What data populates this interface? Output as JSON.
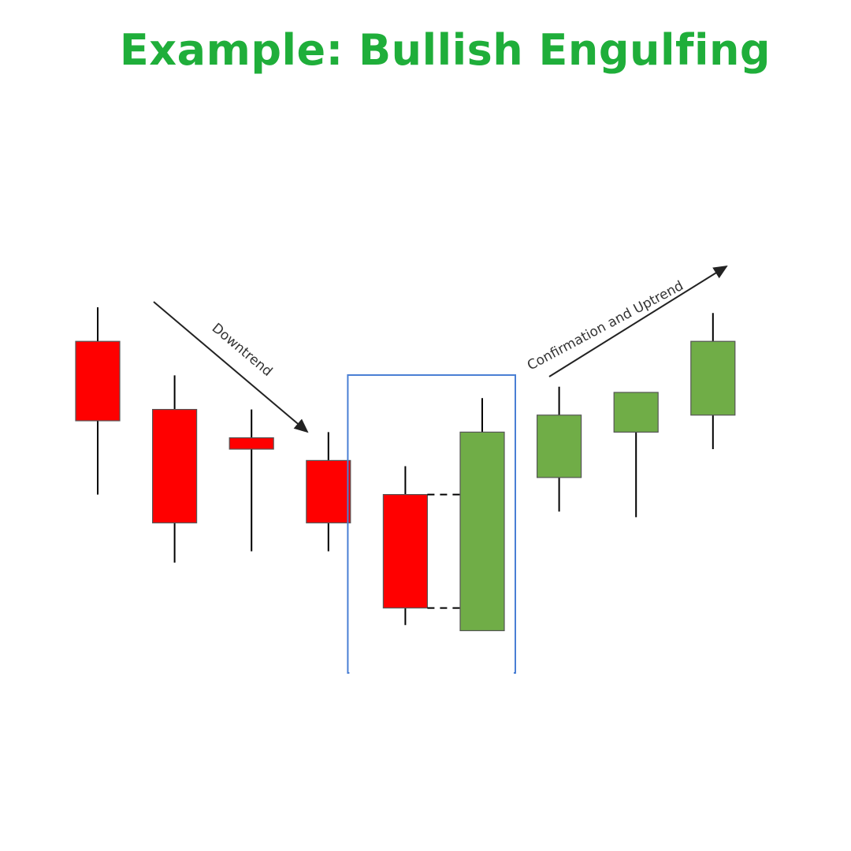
{
  "title": "Example: Bullish Engulfing",
  "labels": {
    "downtrend": "Downtrend",
    "uptrend": "Confirmation and Uptrend"
  },
  "colors": {
    "title": "#1fae3a",
    "bearish": "#ff0000",
    "bullish": "#70ad47",
    "highlight_box": "#4a7fd4",
    "wick": "#000000"
  },
  "chart_data": {
    "type": "candlestick",
    "title": "",
    "xlabel": "",
    "ylabel": "",
    "candles": [
      {
        "index": 1,
        "direction": "bearish",
        "open": 74,
        "close": 60,
        "high": 80,
        "low": 47
      },
      {
        "index": 2,
        "direction": "bearish",
        "open": 62,
        "close": 42,
        "high": 68,
        "low": 35
      },
      {
        "index": 3,
        "direction": "bearish",
        "open": 57,
        "close": 55,
        "high": 62,
        "low": 37
      },
      {
        "index": 4,
        "direction": "bearish",
        "open": 53,
        "close": 42,
        "high": 58,
        "low": 37
      },
      {
        "index": 5,
        "direction": "bearish",
        "open": 47,
        "close": 27,
        "high": 52,
        "low": 24
      },
      {
        "index": 6,
        "direction": "bullish",
        "open": 23,
        "close": 58,
        "high": 64,
        "low": 23
      },
      {
        "index": 7,
        "direction": "bullish",
        "open": 50,
        "close": 61,
        "high": 66,
        "low": 44
      },
      {
        "index": 8,
        "direction": "bullish",
        "open": 58,
        "close": 65,
        "high": 65,
        "low": 43
      },
      {
        "index": 9,
        "direction": "bullish",
        "open": 61,
        "close": 74,
        "high": 79,
        "low": 55
      }
    ],
    "highlight": {
      "candles": [
        5,
        6
      ],
      "label": ""
    }
  }
}
